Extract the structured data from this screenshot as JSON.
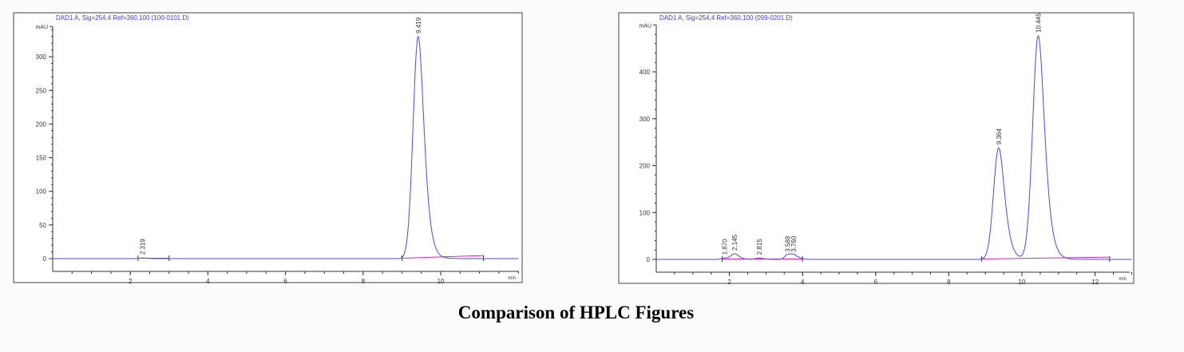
{
  "caption": "Comparison of HPLC Figures",
  "colors": {
    "trace": "#4a4ae0",
    "baseline": "#e020c0",
    "header": "#3a3ae8"
  },
  "chart_data": [
    {
      "type": "line",
      "title": "DAD1 A, Sig=254,4 Ref=360,100 (100-0101.D)",
      "ylabel": "mAU",
      "xlabel": "min",
      "xlim": [
        0,
        12
      ],
      "ylim": [
        -15,
        345
      ],
      "xticks": [
        2,
        4,
        6,
        8,
        10
      ],
      "yticks": [
        0,
        50,
        100,
        150,
        200,
        250,
        300
      ],
      "peaks": [
        {
          "rt": 2.319,
          "label": "2.319",
          "height": 1,
          "width": 0.08
        },
        {
          "rt": 9.419,
          "label": "9.419",
          "height": 330,
          "width": 0.13
        }
      ],
      "baseline_segments": [
        [
          2.2,
          3.0
        ],
        [
          9.0,
          11.1
        ]
      ]
    },
    {
      "type": "line",
      "title": "DAD1 A, Sig=254,4 Ref=360,100 (099-0201.D)",
      "ylabel": "mAU",
      "xlabel": "min",
      "xlim": [
        0,
        13
      ],
      "ylim": [
        -25,
        500
      ],
      "xticks": [
        2,
        4,
        6,
        8,
        10,
        12
      ],
      "yticks": [
        0,
        100,
        200,
        300,
        400
      ],
      "peaks": [
        {
          "rt": 1.87,
          "label": "1.870",
          "height": 3,
          "width": 0.08
        },
        {
          "rt": 2.145,
          "label": "2.145",
          "height": 12,
          "width": 0.1
        },
        {
          "rt": 2.815,
          "label": "2.815",
          "height": 3,
          "width": 0.1
        },
        {
          "rt": 3.588,
          "label": "3.588",
          "height": 9,
          "width": 0.08
        },
        {
          "rt": 3.76,
          "label": "3.760",
          "height": 9,
          "width": 0.1
        },
        {
          "rt": 9.364,
          "label": "9.364",
          "height": 238,
          "width": 0.14
        },
        {
          "rt": 10.445,
          "label": "10.445",
          "height": 477,
          "width": 0.15
        }
      ],
      "baseline_segments": [
        [
          1.8,
          4.0
        ],
        [
          8.9,
          12.4
        ]
      ]
    }
  ]
}
